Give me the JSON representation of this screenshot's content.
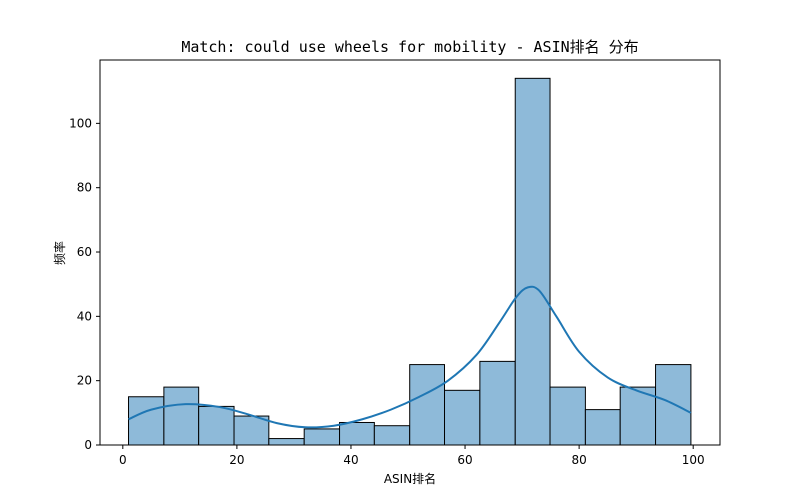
{
  "chart_data": {
    "type": "bar",
    "subtype": "histogram",
    "title": "Match: could use wheels for mobility - ASIN排名 分布",
    "xlabel": "ASIN排名",
    "ylabel": "频率",
    "xlim": [
      -4,
      104.7
    ],
    "ylim": [
      0,
      119.7
    ],
    "xticks": [
      0,
      20,
      40,
      60,
      80,
      100
    ],
    "yticks": [
      0,
      20,
      40,
      60,
      80,
      100
    ],
    "grid": false,
    "bar_color": "#8ebad9",
    "bar_edge_color": "#000000",
    "kde_color": "#1f77b4",
    "bins": [
      {
        "x0": 1.0,
        "x1": 7.2,
        "count": 15
      },
      {
        "x0": 7.2,
        "x1": 13.3,
        "count": 18
      },
      {
        "x0": 13.3,
        "x1": 19.5,
        "count": 12
      },
      {
        "x0": 19.5,
        "x1": 25.6,
        "count": 9
      },
      {
        "x0": 25.6,
        "x1": 31.8,
        "count": 2
      },
      {
        "x0": 31.8,
        "x1": 38.0,
        "count": 5
      },
      {
        "x0": 38.0,
        "x1": 44.1,
        "count": 7
      },
      {
        "x0": 44.1,
        "x1": 50.3,
        "count": 6
      },
      {
        "x0": 50.3,
        "x1": 56.4,
        "count": 25
      },
      {
        "x0": 56.4,
        "x1": 62.6,
        "count": 17
      },
      {
        "x0": 62.6,
        "x1": 68.8,
        "count": 26
      },
      {
        "x0": 68.8,
        "x1": 74.9,
        "count": 114
      },
      {
        "x0": 74.9,
        "x1": 81.1,
        "count": 18
      },
      {
        "x0": 81.1,
        "x1": 87.2,
        "count": 11
      },
      {
        "x0": 87.2,
        "x1": 93.4,
        "count": 18
      },
      {
        "x0": 93.4,
        "x1": 99.6,
        "count": 25
      }
    ],
    "kde_curve": {
      "x": [
        1,
        5,
        11,
        17,
        22,
        27,
        32,
        37,
        42,
        47,
        52,
        57,
        62,
        66,
        69,
        71,
        73,
        76,
        80,
        85,
        90,
        95,
        99.6
      ],
      "y": [
        8,
        11,
        12.7,
        11.8,
        9.5,
        6.8,
        5.5,
        6,
        8,
        11,
        15,
        20,
        28,
        38,
        46,
        49,
        48,
        40,
        29,
        21,
        17,
        14,
        10
      ]
    }
  }
}
